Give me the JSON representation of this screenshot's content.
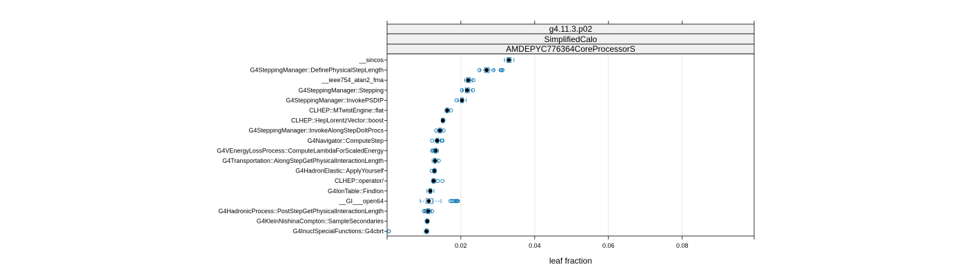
{
  "chart_data": {
    "type": "boxplot",
    "strips": [
      "g4.11.3.p02",
      "SimplifiedCalo",
      "AMDEPYC776364CoreProcessorS"
    ],
    "xlabel": "leaf fraction",
    "xlim": [
      0.0,
      0.0995
    ],
    "xticks": [
      0.02,
      0.04,
      0.06,
      0.08
    ],
    "xtick_labels": [
      "0.02",
      "0.04",
      "0.06",
      "0.08"
    ],
    "grid": true,
    "colors": {
      "box": "#0072b2",
      "median": "#000000",
      "strip_fill": "#f0f0f0",
      "grid": "#e6e6e6"
    },
    "categories": [
      "__sincos",
      "G4SteppingManager::DefinePhysicalStepLength",
      "__ieee754_atan2_fma",
      "G4SteppingManager::Stepping",
      "G4SteppingManager::InvokePSDIP",
      "CLHEP::MTwistEngine::flat",
      "CLHEP::HepLorentzVector::boost",
      "G4SteppingManager::InvokeAlongStepDoItProcs",
      "G4Navigator::ComputeStep",
      "G4VEnergyLossProcess::ComputeLambdaForScaledEnergy",
      "G4Transportation::AlongStepGetPhysicalInteractionLength",
      "G4HadronElastic::ApplyYourself",
      "CLHEP::operator/",
      "G4IonTable::FindIon",
      "__GI___open64",
      "G4HadronicProcess::PostStepGetPhysicalInteractionLength",
      "G4KleinNishinaCompton::SampleSecondaries",
      "G4InuclSpecialFunctions::G4cbrt"
    ],
    "boxes": [
      {
        "wlo": 0.0318,
        "q1": 0.0325,
        "med": 0.033,
        "q3": 0.0336,
        "whi": 0.0344,
        "out": []
      },
      {
        "wlo": 0.0252,
        "q1": 0.0264,
        "med": 0.027,
        "q3": 0.0277,
        "whi": 0.029,
        "out": [
          0.025,
          0.0288,
          0.0308,
          0.031,
          0.0313
        ]
      },
      {
        "wlo": 0.021,
        "q1": 0.0215,
        "med": 0.022,
        "q3": 0.0226,
        "whi": 0.0232,
        "out": [
          0.0234
        ]
      },
      {
        "wlo": 0.0204,
        "q1": 0.0212,
        "med": 0.0217,
        "q3": 0.0223,
        "whi": 0.023,
        "out": [
          0.0203,
          0.0233
        ]
      },
      {
        "wlo": 0.0193,
        "q1": 0.0199,
        "med": 0.0203,
        "q3": 0.0207,
        "whi": 0.0214,
        "out": [
          0.0188
        ]
      },
      {
        "wlo": 0.0157,
        "q1": 0.016,
        "med": 0.0163,
        "q3": 0.0166,
        "whi": 0.017,
        "out": [
          0.0173
        ]
      },
      {
        "wlo": 0.0147,
        "q1": 0.0149,
        "med": 0.0151,
        "q3": 0.0154,
        "whi": 0.0157,
        "out": []
      },
      {
        "wlo": 0.0136,
        "q1": 0.014,
        "med": 0.0143,
        "q3": 0.0147,
        "whi": 0.0151,
        "out": [
          0.0133,
          0.0153
        ]
      },
      {
        "wlo": 0.013,
        "q1": 0.0133,
        "med": 0.0136,
        "q3": 0.014,
        "whi": 0.0145,
        "out": [
          0.0122,
          0.0148,
          0.015
        ]
      },
      {
        "wlo": 0.0124,
        "q1": 0.0128,
        "med": 0.0132,
        "q3": 0.0135,
        "whi": 0.0139,
        "out": [
          0.0122,
          0.0125
        ]
      },
      {
        "wlo": 0.0122,
        "q1": 0.0126,
        "med": 0.013,
        "q3": 0.0133,
        "whi": 0.0138,
        "out": [
          0.014
        ]
      },
      {
        "wlo": 0.0123,
        "q1": 0.0126,
        "med": 0.0128,
        "q3": 0.0131,
        "whi": 0.0134,
        "out": [
          0.0121
        ]
      },
      {
        "wlo": 0.012,
        "q1": 0.0123,
        "med": 0.0126,
        "q3": 0.0129,
        "whi": 0.0132,
        "out": [
          0.0137,
          0.015
        ]
      },
      {
        "wlo": 0.0108,
        "q1": 0.0113,
        "med": 0.0117,
        "q3": 0.0121,
        "whi": 0.0127,
        "out": []
      },
      {
        "wlo": 0.009,
        "q1": 0.0106,
        "med": 0.0113,
        "q3": 0.0124,
        "whi": 0.0146,
        "out": [
          0.0172,
          0.0176,
          0.018,
          0.0185,
          0.0188,
          0.019,
          0.0192
        ]
      },
      {
        "wlo": 0.0102,
        "q1": 0.0107,
        "med": 0.0111,
        "q3": 0.0116,
        "whi": 0.0121,
        "out": [
          0.01,
          0.0103,
          0.0122
        ]
      },
      {
        "wlo": 0.0103,
        "q1": 0.0106,
        "med": 0.0109,
        "q3": 0.0111,
        "whi": 0.0114,
        "out": []
      },
      {
        "wlo": 0.0101,
        "q1": 0.0104,
        "med": 0.0107,
        "q3": 0.011,
        "whi": 0.0113,
        "out": [
          0.0002,
          0.0004
        ]
      }
    ]
  }
}
